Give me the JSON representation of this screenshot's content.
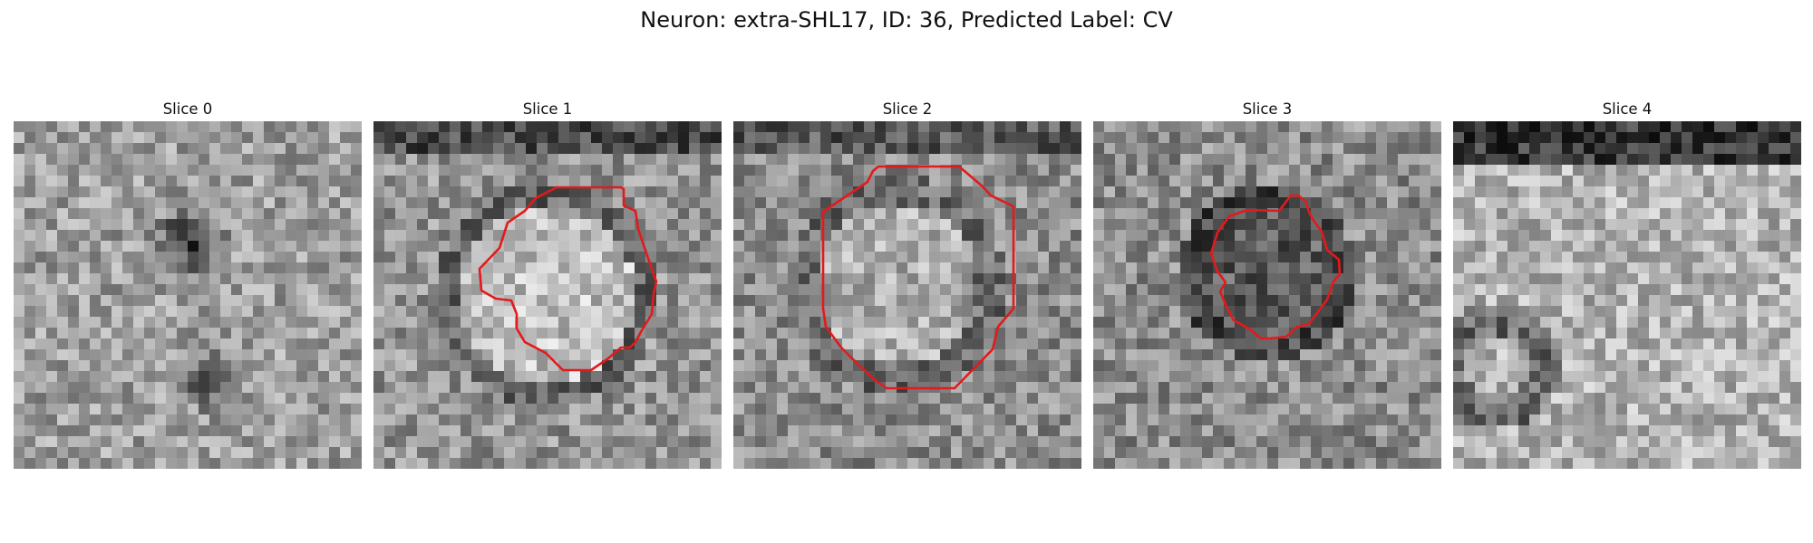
{
  "figure": {
    "title": "Neuron: extra-SHL17, ID: 36, Predicted Label: CV"
  },
  "panels": [
    {
      "title": "Slice 0",
      "has_contour": false,
      "seed": 11
    },
    {
      "title": "Slice 1",
      "has_contour": true,
      "seed": 23
    },
    {
      "title": "Slice 2",
      "has_contour": true,
      "seed": 37
    },
    {
      "title": "Slice 3",
      "has_contour": true,
      "seed": 51
    },
    {
      "title": "Slice 4",
      "has_contour": false,
      "seed": 67
    }
  ],
  "colors": {
    "contour": "#e31a1c",
    "background": "#ffffff"
  }
}
